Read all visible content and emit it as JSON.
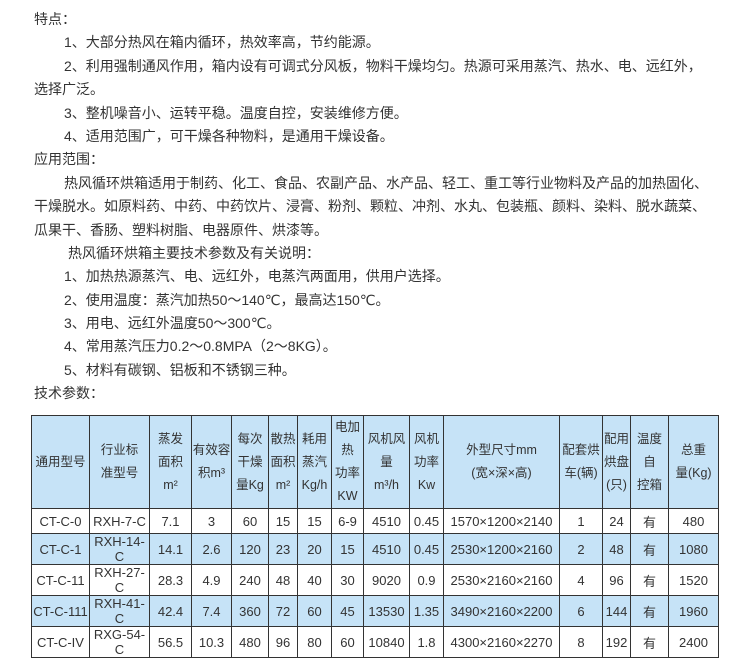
{
  "features": {
    "heading": "特点：",
    "items": [
      "1、大部分热风在箱内循环，热效率高，节约能源。",
      "2、利用强制通风作用，箱内设有可调式分风板，物料干燥均匀。热源可采用蒸汽、热水、电、远红外，",
      "选择广泛。",
      "3、整机噪音小、运转平稳。温度自控，安装维修方便。",
      "4、适用范围广，可干燥各种物料，是通用干燥设备。"
    ]
  },
  "application": {
    "heading": "应用范围：",
    "lines": [
      "热风循环烘箱适用于制药、化工、食品、农副产品、水产品、轻工、重工等行业物料及产品的加热固化、",
      "干燥脱水。如原料药、中药、中药饮片、浸膏、粉剂、颗粒、冲剂、水丸、包装瓶、颜料、染料、脱水蔬菜、",
      "瓜果干、香肠、塑料树脂、电器原件、烘漆等。"
    ]
  },
  "specs_intro": {
    "heading": "热风循环烘箱主要技术参数及有关说明：",
    "items": [
      "1、加热热源蒸汽、电、远红外，电蒸汽两面用，供用户选择。",
      "2、使用温度：蒸汽加热50～140℃，最高达150℃。",
      "3、用电、远红外温度50～300℃。",
      "4、常用蒸汽压力0.2～0.8MPA（2～8KG）。",
      "5、材料有碳钢、铝板和不锈钢三种。"
    ]
  },
  "tech": {
    "heading": "技术参数：",
    "header_color": "#c6e3f7",
    "columns": [
      [
        "通用型号"
      ],
      [
        "行业标",
        "准型号"
      ],
      [
        "蒸发",
        "面积",
        "m²"
      ],
      [
        "有效容",
        "积m³"
      ],
      [
        "每次",
        "干燥",
        "量Kg"
      ],
      [
        "散热",
        "面积",
        "m²"
      ],
      [
        "耗用",
        "蒸汽",
        "Kg/h"
      ],
      [
        "电加热",
        "功率",
        "KW"
      ],
      [
        "风机风",
        "量",
        "m³/h"
      ],
      [
        "风机",
        "功率",
        "Kw"
      ],
      [
        "外型尺寸mm",
        "(宽×深×高)"
      ],
      [
        "配套烘",
        "车(辆)"
      ],
      [
        "配用",
        "烘盘",
        "(只)"
      ],
      [
        "温度自",
        "控箱"
      ],
      [
        "总重",
        "量(Kg)"
      ]
    ],
    "rows": [
      [
        "CT-C-0",
        "RXH-7-C",
        "7.1",
        "3",
        "60",
        "15",
        "15",
        "6-9",
        "4510",
        "0.45",
        "1570×1200×2140",
        "1",
        "24",
        "有",
        "480"
      ],
      [
        "CT-C-1",
        "RXH-14-C",
        "14.1",
        "2.6",
        "120",
        "23",
        "20",
        "15",
        "4510",
        "0.45",
        "2530×1200×2160",
        "2",
        "48",
        "有",
        "1080"
      ],
      [
        "CT-C-11",
        "RXH-27-C",
        "28.3",
        "4.9",
        "240",
        "48",
        "40",
        "30",
        "9020",
        "0.9",
        "2530×2160×2160",
        "4",
        "96",
        "有",
        "1520"
      ],
      [
        "CT-C-111",
        "RXH-41-C",
        "42.4",
        "7.4",
        "360",
        "72",
        "60",
        "45",
        "13530",
        "1.35",
        "3490×2160×2200",
        "6",
        "144",
        "有",
        "1960"
      ],
      [
        "CT-C-IV",
        "RXG-54-C",
        "56.5",
        "10.3",
        "480",
        "96",
        "80",
        "60",
        "10840",
        "1.8",
        "4300×2160×2270",
        "8",
        "192",
        "有",
        "2400"
      ]
    ]
  }
}
